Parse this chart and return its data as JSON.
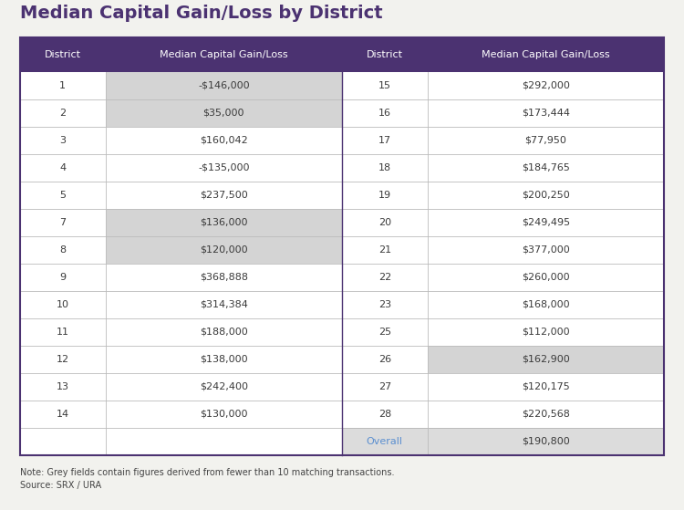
{
  "title": "Median Capital Gain/Loss by District",
  "header_bg": "#4B3271",
  "header_fg": "#FFFFFF",
  "header_cols": [
    "District",
    "Median Capital Gain/Loss",
    "District",
    "Median Capital Gain/Loss"
  ],
  "left_data": [
    {
      "district": "1",
      "value": "-$146,000",
      "grey": true
    },
    {
      "district": "2",
      "value": "$35,000",
      "grey": true
    },
    {
      "district": "3",
      "value": "$160,042",
      "grey": false
    },
    {
      "district": "4",
      "value": "-$135,000",
      "grey": false
    },
    {
      "district": "5",
      "value": "$237,500",
      "grey": false
    },
    {
      "district": "7",
      "value": "$136,000",
      "grey": true
    },
    {
      "district": "8",
      "value": "$120,000",
      "grey": true
    },
    {
      "district": "9",
      "value": "$368,888",
      "grey": false
    },
    {
      "district": "10",
      "value": "$314,384",
      "grey": false
    },
    {
      "district": "11",
      "value": "$188,000",
      "grey": false
    },
    {
      "district": "12",
      "value": "$138,000",
      "grey": false
    },
    {
      "district": "13",
      "value": "$242,400",
      "grey": false
    },
    {
      "district": "14",
      "value": "$130,000",
      "grey": false
    }
  ],
  "right_data": [
    {
      "district": "15",
      "value": "$292,000",
      "grey": false
    },
    {
      "district": "16",
      "value": "$173,444",
      "grey": false
    },
    {
      "district": "17",
      "value": "$77,950",
      "grey": false
    },
    {
      "district": "18",
      "value": "$184,765",
      "grey": false
    },
    {
      "district": "19",
      "value": "$200,250",
      "grey": false
    },
    {
      "district": "20",
      "value": "$249,495",
      "grey": false
    },
    {
      "district": "21",
      "value": "$377,000",
      "grey": false
    },
    {
      "district": "22",
      "value": "$260,000",
      "grey": false
    },
    {
      "district": "23",
      "value": "$168,000",
      "grey": false
    },
    {
      "district": "25",
      "value": "$112,000",
      "grey": false
    },
    {
      "district": "26",
      "value": "$162,900",
      "grey": true
    },
    {
      "district": "27",
      "value": "$120,175",
      "grey": false
    },
    {
      "district": "28",
      "value": "$220,568",
      "grey": false
    }
  ],
  "overall_district": "Overall",
  "overall_value": "$190,800",
  "overall_district_color": "#5B8FD0",
  "overall_row_bg": "#DCDCDC",
  "grey_bg": "#D4D4D4",
  "white_bg": "#FFFFFF",
  "row_border": "#BBBBBB",
  "table_border": "#4B3271",
  "note": "Note: Grey fields contain figures derived from fewer than 10 matching transactions.",
  "source": "Source: SRX / URA",
  "title_color": "#4B3271",
  "cell_text_color": "#3A3A3A",
  "font_size_title": 14,
  "font_size_header": 8,
  "font_size_cell": 8,
  "font_size_note": 7,
  "background_color": "#F2F2EE"
}
